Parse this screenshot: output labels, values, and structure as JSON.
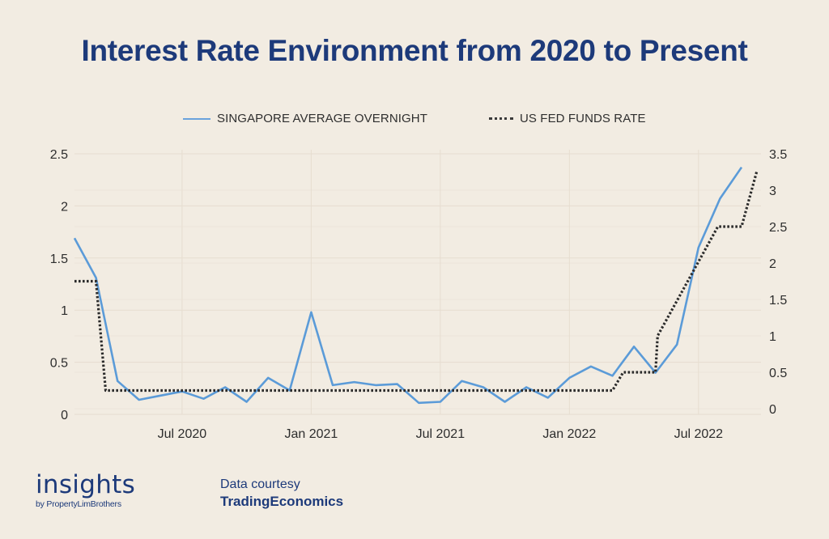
{
  "colors": {
    "background": "#f2ece2",
    "title": "#1d3a7a",
    "singapore_line": "#5b9bd8",
    "fed_line": "#2b2b2b",
    "grid": "#e6ddd0"
  },
  "chart_data": {
    "type": "line",
    "title": "Interest Rate Environment from 2020 to Present",
    "xlabel": "",
    "ylabel_left": "",
    "ylabel_right": "",
    "legend_position": "top-center",
    "grid": true,
    "x_ticks": [
      "Jul 2020",
      "Jan 2021",
      "Jul 2021",
      "Jan 2022",
      "Jul 2022"
    ],
    "x_tick_months": [
      5,
      11,
      17,
      23,
      29
    ],
    "y_left": {
      "ylim": [
        0,
        2.5
      ],
      "ticks": [
        "0",
        "0.5",
        "1",
        "1.5",
        "2",
        "2.5"
      ]
    },
    "y_right": {
      "ylim": [
        0,
        3.5
      ],
      "ticks": [
        "0",
        "0.5",
        "1",
        "1.5",
        "2",
        "2.5",
        "3",
        "3.5"
      ]
    },
    "series": [
      {
        "name": "SINGAPORE AVERAGE OVERNIGHT",
        "axis": "left",
        "style": "solid",
        "x_months": [
          0,
          1,
          2,
          3,
          4,
          5,
          6,
          7,
          8,
          9,
          10,
          11,
          12,
          13,
          14,
          15,
          16,
          17,
          18,
          19,
          20,
          21,
          22,
          23,
          24,
          25,
          26,
          27,
          28,
          29,
          30,
          31
        ],
        "labels": [
          "Feb 2020",
          "Mar 2020",
          "Apr 2020",
          "May 2020",
          "Jun 2020",
          "Jul 2020",
          "Aug 2020",
          "Sep 2020",
          "Oct 2020",
          "Nov 2020",
          "Dec 2020",
          "Jan 2021",
          "Feb 2021",
          "Mar 2021",
          "Apr 2021",
          "May 2021",
          "Jun 2021",
          "Jul 2021",
          "Aug 2021",
          "Sep 2021",
          "Oct 2021",
          "Nov 2021",
          "Dec 2021",
          "Jan 2022",
          "Feb 2022",
          "Mar 2022",
          "Apr 2022",
          "May 2022",
          "Jun 2022",
          "Jul 2022",
          "Aug 2022",
          "Sep 2022"
        ],
        "values": [
          1.69,
          1.31,
          0.32,
          0.14,
          0.18,
          0.22,
          0.15,
          0.26,
          0.12,
          0.35,
          0.23,
          0.98,
          0.28,
          0.31,
          0.28,
          0.29,
          0.11,
          0.12,
          0.32,
          0.26,
          0.12,
          0.26,
          0.16,
          0.35,
          0.46,
          0.37,
          0.65,
          0.4,
          0.67,
          1.6,
          2.07,
          2.37
        ]
      },
      {
        "name": "US FED FUNDS RATE",
        "axis": "right",
        "style": "dotted",
        "x_months": [
          0,
          1,
          1.45,
          25,
          25.5,
          27,
          27.1,
          29.9,
          31,
          31.7
        ],
        "values": [
          1.75,
          1.75,
          0.25,
          0.25,
          0.5,
          0.5,
          1.0,
          2.5,
          2.5,
          3.25
        ]
      }
    ]
  },
  "footer": {
    "logo_word": "insights",
    "logo_sub": "by PropertyLimBrothers",
    "credit_line1": "Data courtesy",
    "credit_line2": "TradingEconomics"
  }
}
